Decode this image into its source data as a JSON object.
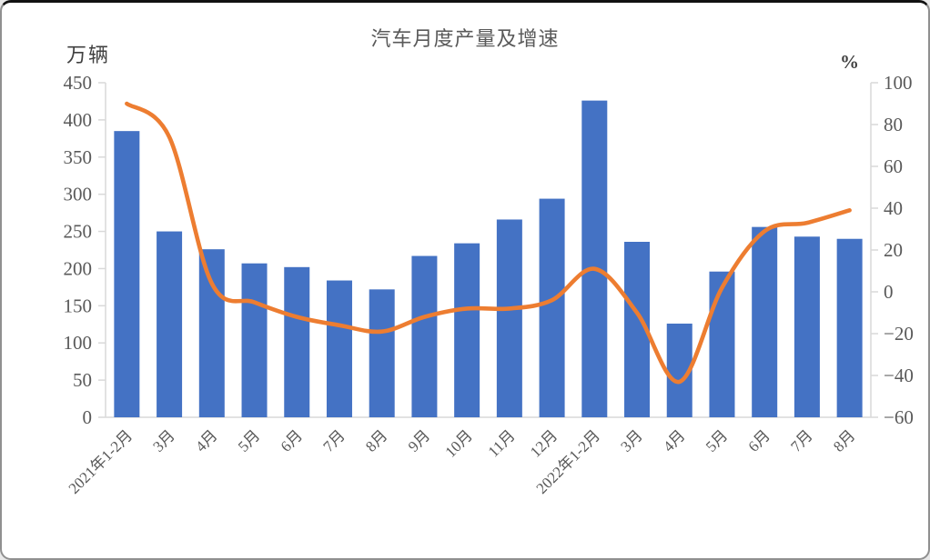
{
  "window": {
    "background_color": "#ffffff",
    "border_color": "#909090"
  },
  "chart_data": {
    "type": "bar+line",
    "title": "汽车月度产量及增速",
    "grid": false,
    "legend_position": "none",
    "axis_line_color": "#d9d9d9",
    "tick_label_color": "#595959",
    "x_label_color": "#595959",
    "title_color": "#595959",
    "categories": [
      "2021年1-2月",
      "3月",
      "4月",
      "5月",
      "6月",
      "7月",
      "8月",
      "9月",
      "10月",
      "11月",
      "12月",
      "2022年1-2月",
      "3月",
      "4月",
      "5月",
      "6月",
      "7月",
      "8月"
    ],
    "left_axis": {
      "unit_label": "万辆",
      "min": 0,
      "max": 450,
      "step": 50,
      "tick_labels": [
        "0",
        "50",
        "100",
        "150",
        "200",
        "250",
        "300",
        "350",
        "400",
        "450"
      ]
    },
    "right_axis": {
      "unit_label": "%",
      "min": -60,
      "max": 100,
      "step": 20,
      "tick_labels": [
        "−60",
        "−40",
        "−20",
        "0",
        "20",
        "40",
        "60",
        "80",
        "100"
      ]
    },
    "series": [
      {
        "name": "产量",
        "type": "bar",
        "axis": "left",
        "unit": "万辆",
        "color": "#4472C4",
        "values": [
          385,
          250,
          226,
          207,
          202,
          184,
          172,
          217,
          234,
          266,
          294,
          426,
          236,
          126,
          196,
          256,
          243,
          240
        ]
      },
      {
        "name": "增速",
        "type": "line",
        "axis": "right",
        "unit": "%",
        "color": "#ED7D31",
        "values": [
          90,
          74,
          4,
          -5,
          -12,
          -16,
          -19,
          -12,
          -8,
          -8,
          -4,
          11,
          -10,
          -43,
          2,
          29,
          33,
          39
        ]
      }
    ]
  }
}
